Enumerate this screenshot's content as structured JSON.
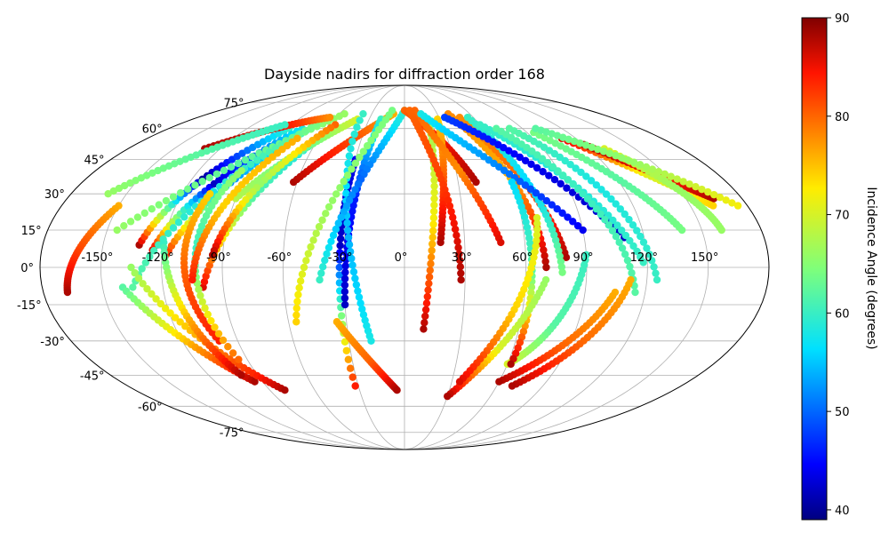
{
  "chart_data": {
    "type": "scatter",
    "projection": "mollweide",
    "title": "Dayside nadirs for diffraction order 168",
    "xlabel": "",
    "ylabel": "",
    "xlim": [
      -180,
      180
    ],
    "ylim": [
      -90,
      90
    ],
    "grid": true,
    "lon_tick_labels": [
      "-150°",
      "-120°",
      "-90°",
      "-60°",
      "-30°",
      "0°",
      "30°",
      "60°",
      "90°",
      "120°",
      "150°"
    ],
    "lat_tick_labels": [
      "-75°",
      "-60°",
      "-45°",
      "-30°",
      "-15°",
      "0°",
      "15°",
      "30°",
      "45°",
      "60°",
      "75°"
    ],
    "colorbar": {
      "label": "Incidence Angle (degrees)",
      "range": [
        39,
        90
      ],
      "ticks": [
        "40",
        "50",
        "60",
        "70",
        "80",
        "90"
      ],
      "colormap": "jet"
    },
    "tracks": [
      {
        "lon0": -132,
        "lat0": 9,
        "lon1": -118,
        "lat1": 38,
        "lon2": -88,
        "lat2": 60,
        "c0": 88,
        "c1": 40,
        "c2": 60
      },
      {
        "lon0": -125,
        "lat0": 7,
        "lon1": -110,
        "lat1": 35,
        "lon2": -78,
        "lat2": 60,
        "c0": 86,
        "c1": 42,
        "c2": 58
      },
      {
        "lon0": -118,
        "lat0": 5,
        "lon1": -100,
        "lat1": 36,
        "lon2": -70,
        "lat2": 62,
        "c0": 84,
        "c1": 52,
        "c2": 62
      },
      {
        "lon0": -100,
        "lat0": -8,
        "lon1": -85,
        "lat1": 30,
        "lon2": -55,
        "lat2": 60,
        "c0": 86,
        "c1": 62,
        "c2": 56
      },
      {
        "lon0": -90,
        "lat0": 28,
        "lon1": -70,
        "lat1": 50,
        "lon2": -40,
        "lat2": 65,
        "c0": 68,
        "c1": 62,
        "c2": 70
      },
      {
        "lon0": -62,
        "lat0": 35,
        "lon1": -40,
        "lat1": 55,
        "lon2": -10,
        "lat2": 68,
        "c0": 88,
        "c1": 82,
        "c2": 76
      },
      {
        "lon0": -145,
        "lat0": 15,
        "lon1": -100,
        "lat1": 45,
        "lon2": -55,
        "lat2": 68,
        "c0": 66,
        "c1": 62,
        "c2": 66
      },
      {
        "lon0": -135,
        "lat0": -8,
        "lon1": -105,
        "lat1": 35,
        "lon2": -70,
        "lat2": 62,
        "c0": 62,
        "c1": 58,
        "c2": 64
      },
      {
        "lon0": -30,
        "lat0": 45,
        "lon1": -33,
        "lat1": 20,
        "lon2": -32,
        "lat2": -50,
        "c0": 44,
        "c1": 42,
        "c2": 84
      },
      {
        "lon0": -20,
        "lat0": 65,
        "lon1": -28,
        "lat1": 30,
        "lon2": -30,
        "lat2": -15,
        "c0": 60,
        "c1": 46,
        "c2": 42
      },
      {
        "lon0": -38,
        "lat0": 68,
        "lon1": -28,
        "lat1": 5,
        "lon2": -18,
        "lat2": -30,
        "c0": 60,
        "c1": 54,
        "c2": 58
      },
      {
        "lon0": 0,
        "lat0": 70,
        "lon1": -28,
        "lat1": 40,
        "lon2": -42,
        "lat2": -5,
        "c0": 60,
        "c1": 50,
        "c2": 60
      },
      {
        "lon0": -12,
        "lat0": 70,
        "lon1": -45,
        "lat1": 25,
        "lon2": -56,
        "lat2": -22,
        "c0": 64,
        "c1": 66,
        "c2": 74
      },
      {
        "lon0": -35,
        "lat0": -22,
        "lon1": -20,
        "lat1": -40,
        "lon2": -5,
        "lat2": -52,
        "c0": 76,
        "c1": 80,
        "c2": 88
      },
      {
        "lon0": 0,
        "lat0": 70,
        "lon1": 25,
        "lat1": 60,
        "lon2": 40,
        "lat2": 35,
        "c0": 80,
        "c1": 84,
        "c2": 88
      },
      {
        "lon0": 28,
        "lat0": 65,
        "lon1": 22,
        "lat1": 40,
        "lon2": 18,
        "lat2": 10,
        "c0": 74,
        "c1": 80,
        "c2": 88
      },
      {
        "lon0": 20,
        "lat0": 65,
        "lon1": 15,
        "lat1": 20,
        "lon2": 10,
        "lat2": -25,
        "c0": 66,
        "c1": 72,
        "c2": 88
      },
      {
        "lon0": 10,
        "lat0": 70,
        "lon1": 35,
        "lat1": 40,
        "lon2": 48,
        "lat2": 10,
        "c0": 80,
        "c1": 78,
        "c2": 86
      },
      {
        "lon0": 5,
        "lat0": 70,
        "lon1": 25,
        "lat1": 40,
        "lon2": 28,
        "lat2": -5,
        "c0": 80,
        "c1": 82,
        "c2": 88
      },
      {
        "lon0": 40,
        "lat0": 68,
        "lon1": 65,
        "lat1": 40,
        "lon2": 70,
        "lat2": 0,
        "c0": 78,
        "c1": 76,
        "c2": 88
      },
      {
        "lon0": 48,
        "lat0": 66,
        "lon1": 70,
        "lat1": 35,
        "lon2": 80,
        "lat2": 4,
        "c0": 78,
        "c1": 80,
        "c2": 88
      },
      {
        "lon0": 55,
        "lat0": 66,
        "lon1": 72,
        "lat1": 35,
        "lon2": 78,
        "lat2": -2,
        "c0": 60,
        "c1": 56,
        "c2": 64
      },
      {
        "lon0": 15,
        "lat0": 68,
        "lon1": 55,
        "lat1": 45,
        "lon2": 90,
        "lat2": 15,
        "c0": 58,
        "c1": 52,
        "c2": 44
      },
      {
        "lon0": 35,
        "lat0": 66,
        "lon1": 75,
        "lat1": 50,
        "lon2": 110,
        "lat2": 12,
        "c0": 48,
        "c1": 44,
        "c2": 42
      },
      {
        "lon0": 60,
        "lat0": 62,
        "lon1": 95,
        "lat1": 40,
        "lon2": 118,
        "lat2": 2,
        "c0": 60,
        "c1": 58,
        "c2": 60
      },
      {
        "lon0": 70,
        "lat0": 60,
        "lon1": 100,
        "lat1": 35,
        "lon2": 115,
        "lat2": -10,
        "c0": 62,
        "c1": 60,
        "c2": 62
      },
      {
        "lon0": 80,
        "lat0": 60,
        "lon1": 110,
        "lat1": 40,
        "lon2": 125,
        "lat2": -5,
        "c0": 62,
        "c1": 58,
        "c2": 60
      },
      {
        "lon0": 95,
        "lat0": 58,
        "lon1": 125,
        "lat1": 35,
        "lon2": 140,
        "lat2": 15,
        "c0": 64,
        "c1": 62,
        "c2": 64
      },
      {
        "lon0": 110,
        "lat0": 55,
        "lon1": 145,
        "lat1": 35,
        "lon2": 162,
        "lat2": 25,
        "c0": 86,
        "c1": 70,
        "c2": 74
      },
      {
        "lon0": 120,
        "lat0": 52,
        "lon1": 150,
        "lat1": 35,
        "lon2": 165,
        "lat2": 28,
        "c0": 88,
        "c1": 84,
        "c2": 88
      },
      {
        "lon0": 130,
        "lat0": 50,
        "lon1": 155,
        "lat1": 30,
        "lon2": 160,
        "lat2": 15,
        "c0": 70,
        "c1": 66,
        "c2": 66
      },
      {
        "lon0": 100,
        "lat0": 60,
        "lon1": 140,
        "lat1": 45,
        "lon2": 175,
        "lat2": 25,
        "c0": 62,
        "c1": 66,
        "c2": 72
      },
      {
        "lon0": 112,
        "lat0": -5,
        "lon1": 100,
        "lat1": -35,
        "lon2": 70,
        "lat2": -50,
        "c0": 76,
        "c1": 80,
        "c2": 88
      },
      {
        "lon0": 105,
        "lat0": -10,
        "lon1": 90,
        "lat1": -35,
        "lon2": 60,
        "lat2": -48,
        "c0": 76,
        "c1": 80,
        "c2": 88
      },
      {
        "lon0": 90,
        "lat0": 5,
        "lon1": 80,
        "lat1": -30,
        "lon2": 60,
        "lat2": -40,
        "c0": 60,
        "c1": 62,
        "c2": 70
      },
      {
        "lon0": 60,
        "lat0": 35,
        "lon1": 65,
        "lat1": 0,
        "lon2": 62,
        "lat2": -40,
        "c0": 56,
        "c1": 62,
        "c2": 88
      },
      {
        "lon0": 70,
        "lat0": -5,
        "lon1": 55,
        "lat1": -35,
        "lon2": 30,
        "lat2": -55,
        "c0": 66,
        "c1": 70,
        "c2": 88
      },
      {
        "lon0": 68,
        "lat0": 20,
        "lon1": 60,
        "lat1": -20,
        "lon2": 35,
        "lat2": -48,
        "c0": 70,
        "c1": 74,
        "c2": 86
      },
      {
        "lon0": -150,
        "lat0": 25,
        "lon1": -165,
        "lat1": 5,
        "lon2": -168,
        "lat2": -10,
        "c0": 76,
        "c1": 82,
        "c2": 88
      },
      {
        "lon0": -140,
        "lat0": -8,
        "lon1": -115,
        "lat1": -35,
        "lon2": -95,
        "lat2": -48,
        "c0": 62,
        "c1": 76,
        "c2": 88
      },
      {
        "lon0": -135,
        "lat0": 0,
        "lon1": -105,
        "lat1": -38,
        "lon2": -80,
        "lat2": -52,
        "c0": 66,
        "c1": 78,
        "c2": 88
      },
      {
        "lon0": -120,
        "lat0": 10,
        "lon1": -112,
        "lat1": -25,
        "lon2": -100,
        "lat2": -45,
        "c0": 60,
        "c1": 76,
        "c2": 88
      },
      {
        "lon0": -105,
        "lat0": 30,
        "lon1": -115,
        "lat1": 0,
        "lon2": -100,
        "lat2": -30,
        "c0": 74,
        "c1": 80,
        "c2": 84
      },
      {
        "lon0": -95,
        "lat0": 40,
        "lon1": -112,
        "lat1": 10,
        "lon2": -95,
        "lat2": -38,
        "c0": 66,
        "c1": 60,
        "c2": 80
      },
      {
        "lon0": -75,
        "lat0": 55,
        "lon1": -100,
        "lat1": 25,
        "lon2": -105,
        "lat2": -5,
        "c0": 76,
        "c1": 74,
        "c2": 84
      },
      {
        "lon0": -55,
        "lat0": 62,
        "lon1": -85,
        "lat1": 35,
        "lon2": -95,
        "lat2": 5,
        "c0": 80,
        "c1": 66,
        "c2": 88
      },
      {
        "lon0": -130,
        "lat0": 50,
        "lon1": -100,
        "lat1": 62,
        "lon2": -65,
        "lat2": 66,
        "c0": 88,
        "c1": 86,
        "c2": 78
      },
      {
        "lon0": -160,
        "lat0": 30,
        "lon1": -130,
        "lat1": 50,
        "lon2": -95,
        "lat2": 62,
        "c0": 66,
        "c1": 62,
        "c2": 60
      }
    ]
  }
}
